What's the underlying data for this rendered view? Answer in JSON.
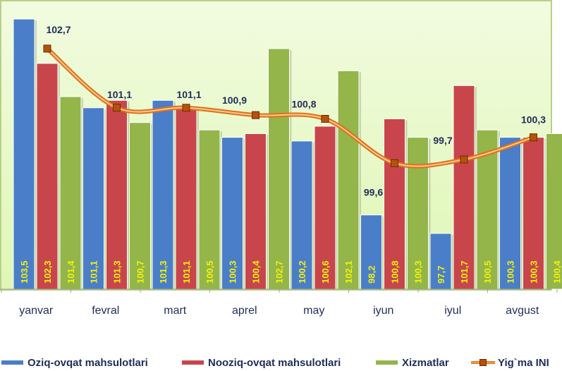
{
  "chart_data": {
    "type": "bar",
    "title": "",
    "xlabel": "",
    "ylabel": "",
    "ylim": [
      96.2,
      104.0
    ],
    "y_axis_visible": false,
    "grid": false,
    "legend_position": "bottom",
    "categories": [
      "yanvar",
      "fevral",
      "mart",
      "aprel",
      "may",
      "iyun",
      "iyul",
      "avgust"
    ],
    "series": [
      {
        "name": "Oziq-ovqat mahsulotlari",
        "type": "bar",
        "color": "#4a7ec8",
        "values": [
          103.5,
          101.1,
          101.3,
          100.3,
          100.2,
          98.2,
          97.7,
          100.3
        ],
        "labels": [
          "103,5",
          "101,1",
          "101,3",
          "100,3",
          "100,2",
          "98,2",
          "97,7",
          "100,3"
        ]
      },
      {
        "name": "Nooziq-ovqat mahsulotlari",
        "type": "bar",
        "color": "#c8464b",
        "values": [
          102.3,
          101.3,
          101.1,
          100.4,
          100.6,
          100.8,
          101.7,
          100.3
        ],
        "labels": [
          "102,3",
          "101,3",
          "101,1",
          "100,4",
          "100,6",
          "100,8",
          "101,7",
          "100,3"
        ]
      },
      {
        "name": "Xizmatlar",
        "type": "bar",
        "color": "#93b54a",
        "values": [
          101.4,
          100.7,
          100.5,
          102.7,
          102.1,
          100.3,
          100.5,
          100.4
        ],
        "labels": [
          "101,4",
          "100,7",
          "100,5",
          "102,7",
          "102,1",
          "100,3",
          "100,5",
          "100,4"
        ]
      },
      {
        "name": "Yig`ma INI",
        "type": "line",
        "color": "#f39b3a",
        "values": [
          102.7,
          101.1,
          101.1,
          100.9,
          100.8,
          99.6,
          99.7,
          100.3
        ],
        "labels": [
          "102,7",
          "101,1",
          "101,1",
          "100,9",
          "100,8",
          "99,6",
          "99,7",
          "100,3"
        ]
      }
    ]
  },
  "colors": {
    "plot_background": "#e8f9c8",
    "frame": "#b9cf8a",
    "bar_label": "#f2f20a",
    "line_label": "#1f2d5a",
    "axis_label": "#1f2d5a",
    "marker": "#b5520e"
  }
}
